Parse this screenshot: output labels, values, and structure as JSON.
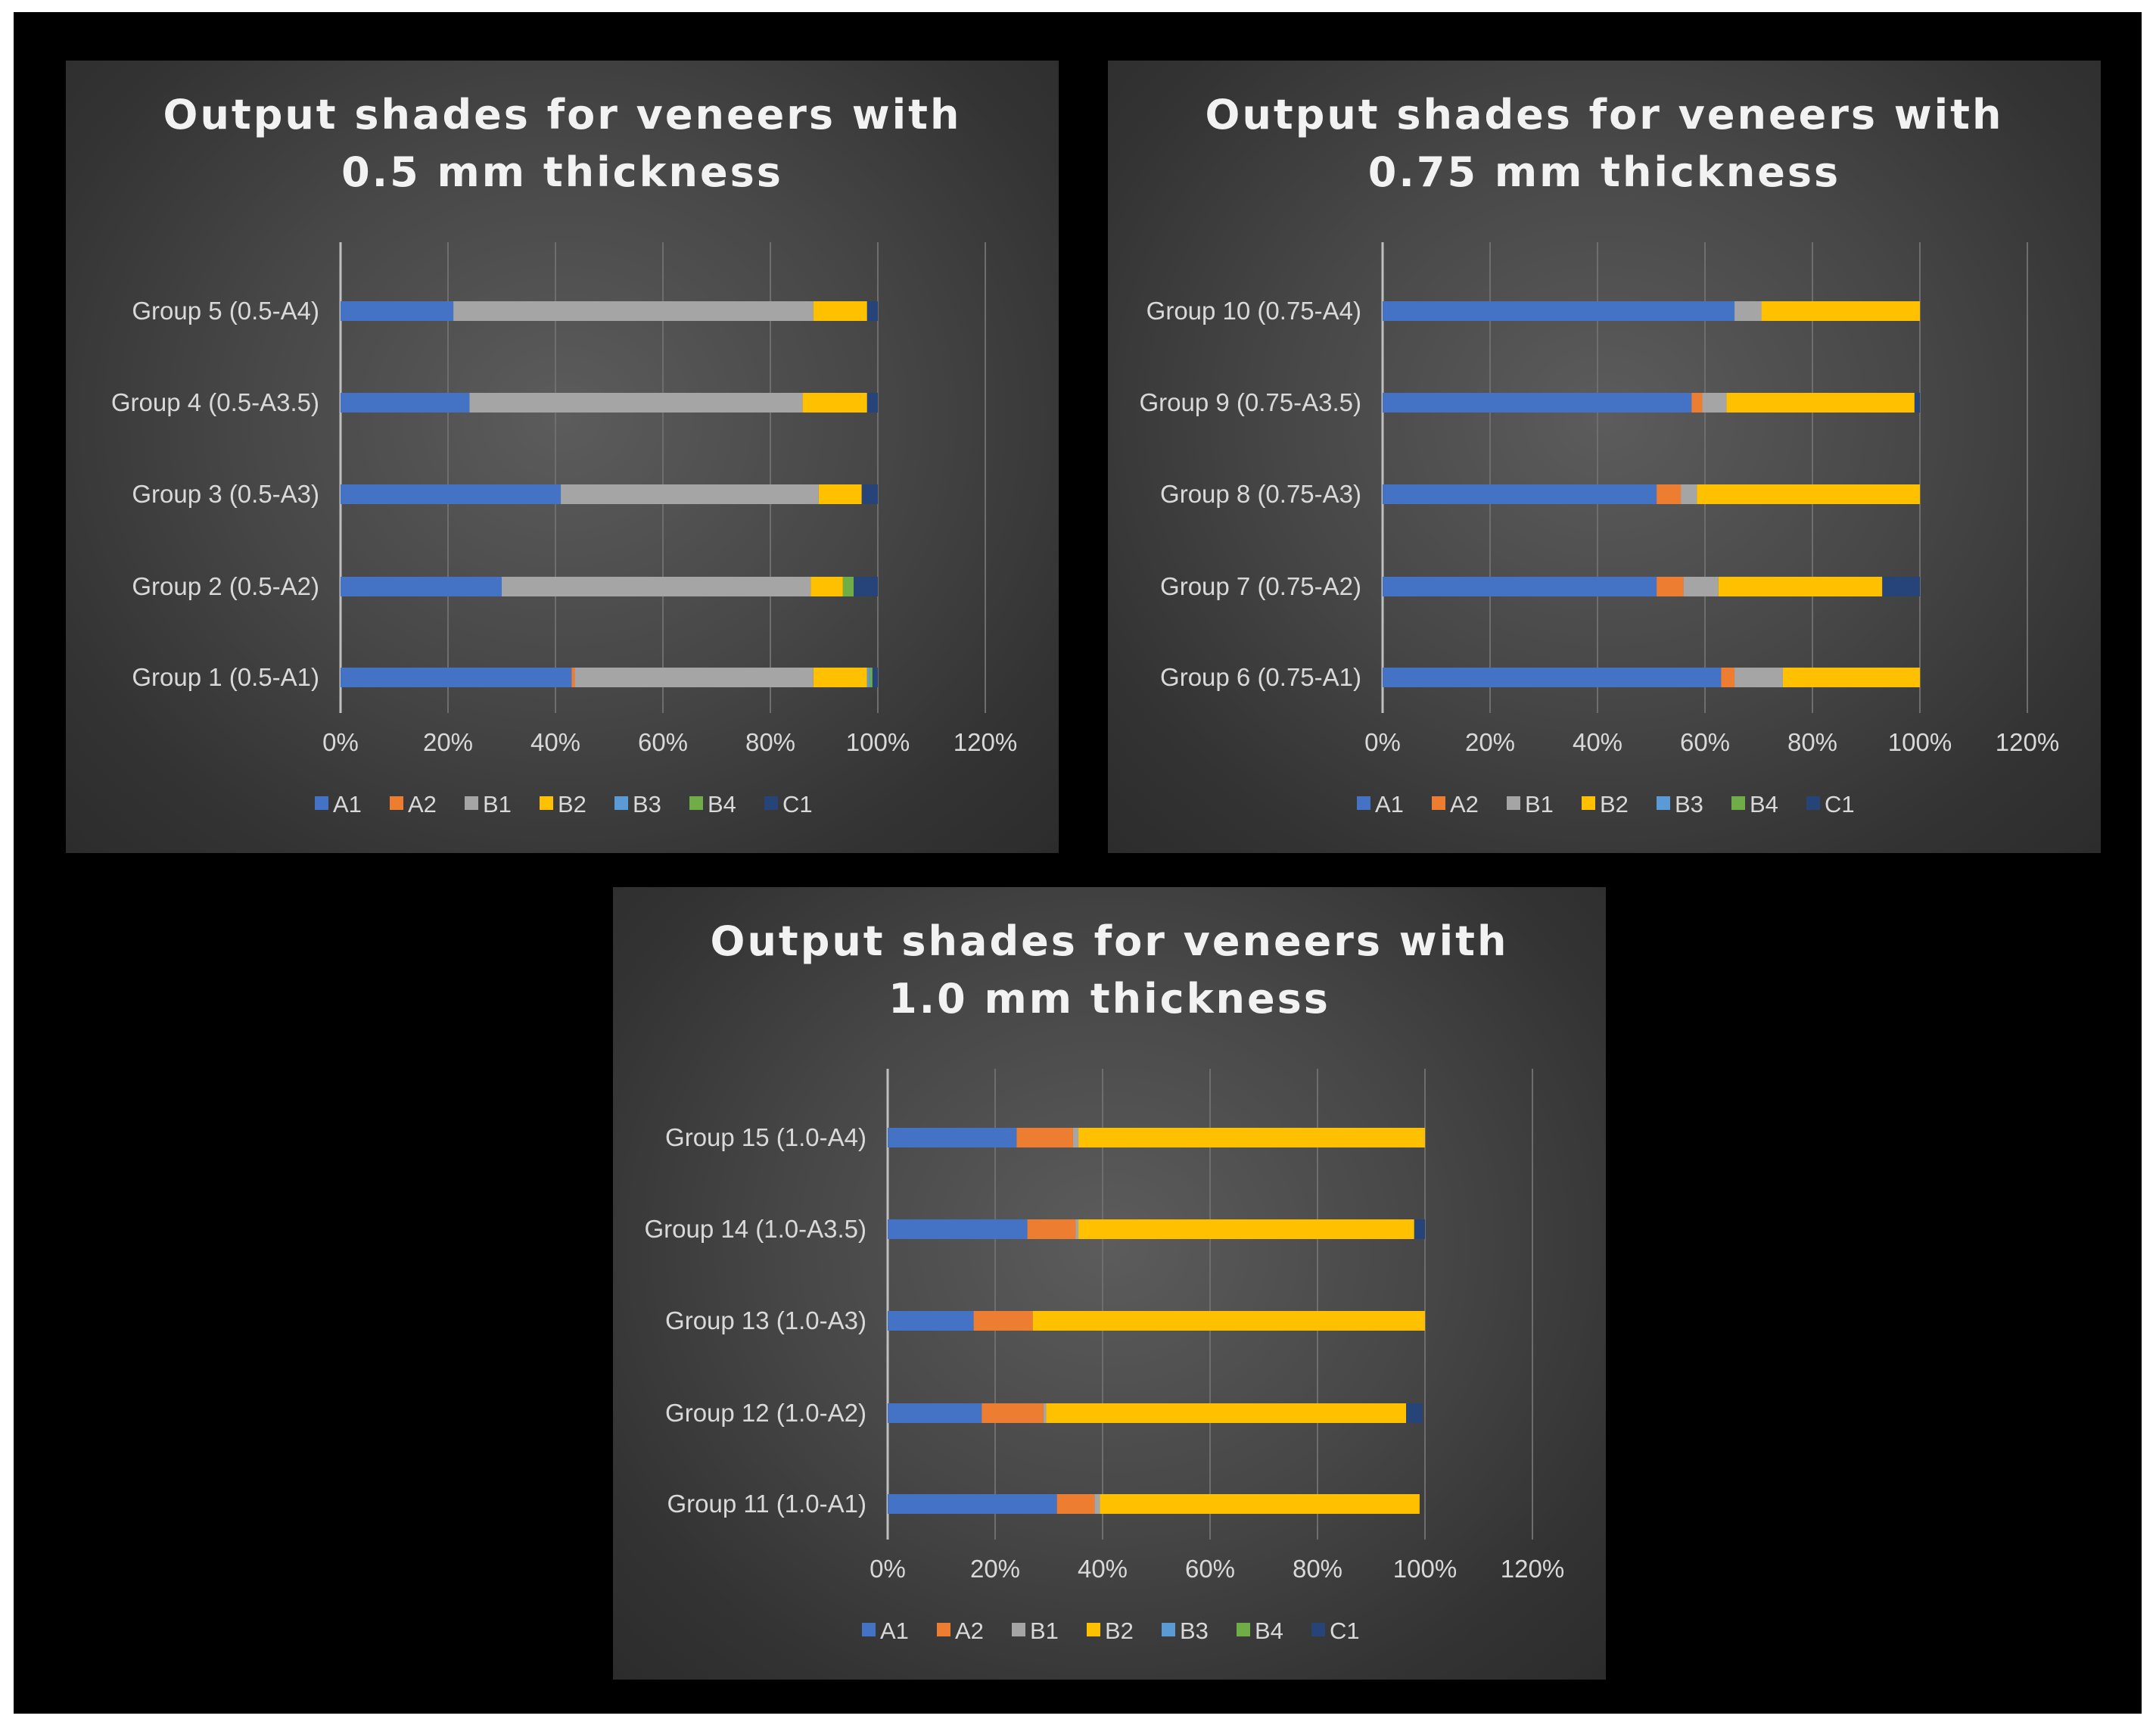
{
  "figure": {
    "legend_labels": [
      "A1",
      "A2",
      "B1",
      "B2",
      "B3",
      "B4",
      "C1"
    ]
  },
  "chart_data": [
    {
      "type": "bar",
      "orientation": "horizontal",
      "stacked": true,
      "title": [
        "Output shades for veneers with",
        "0.5 mm thickness"
      ],
      "categories": [
        "Group 1 (0.5-A1)",
        "Group 2 (0.5-A2)",
        "Group 3 (0.5-A3)",
        "Group 4 (0.5-A3.5)",
        "Group 5 (0.5-A4)"
      ],
      "xlim": [
        0,
        120
      ],
      "xticks": [
        "0%",
        "20%",
        "40%",
        "60%",
        "80%",
        "100%",
        "120%"
      ],
      "grid": true,
      "legend": "bottom",
      "series": [
        {
          "name": "A1",
          "color": "#4472C4",
          "values": [
            43,
            30,
            41,
            24,
            21
          ]
        },
        {
          "name": "A2",
          "color": "#ED7D31",
          "values": [
            0.6,
            0,
            0,
            0,
            0
          ]
        },
        {
          "name": "B1",
          "color": "#A5A5A5",
          "values": [
            44.4,
            57.5,
            48,
            62,
            67
          ]
        },
        {
          "name": "B2",
          "color": "#FFC000",
          "values": [
            10,
            6,
            8,
            12,
            10
          ]
        },
        {
          "name": "B3",
          "color": "#5B9BD5",
          "values": [
            0.5,
            0,
            0,
            0,
            0
          ]
        },
        {
          "name": "B4",
          "color": "#70AD47",
          "values": [
            0.5,
            2,
            0,
            0,
            0
          ]
        },
        {
          "name": "C1",
          "color": "#264478",
          "values": [
            1,
            4.5,
            3,
            2,
            2
          ]
        }
      ]
    },
    {
      "type": "bar",
      "orientation": "horizontal",
      "stacked": true,
      "title": [
        "Output shades for veneers with",
        "0.75 mm thickness"
      ],
      "categories": [
        "Group 6 (0.75-A1)",
        "Group 7 (0.75-A2)",
        "Group 8 (0.75-A3)",
        "Group 9 (0.75-A3.5)",
        "Group 10 (0.75-A4)"
      ],
      "xlim": [
        0,
        120
      ],
      "xticks": [
        "0%",
        "20%",
        "40%",
        "60%",
        "80%",
        "100%",
        "120%"
      ],
      "grid": true,
      "legend": "bottom",
      "series": [
        {
          "name": "A1",
          "color": "#4472C4",
          "values": [
            63,
            51,
            51,
            57.5,
            65.5
          ]
        },
        {
          "name": "A2",
          "color": "#ED7D31",
          "values": [
            2.5,
            5,
            4.5,
            2,
            0
          ]
        },
        {
          "name": "B1",
          "color": "#A5A5A5",
          "values": [
            9,
            6.5,
            3,
            4.5,
            5
          ]
        },
        {
          "name": "B2",
          "color": "#FFC000",
          "values": [
            25.5,
            30.5,
            41.5,
            35,
            29.5
          ]
        },
        {
          "name": "B3",
          "color": "#5B9BD5",
          "values": [
            0,
            0,
            0,
            0,
            0
          ]
        },
        {
          "name": "B4",
          "color": "#70AD47",
          "values": [
            0,
            0,
            0,
            0,
            0
          ]
        },
        {
          "name": "C1",
          "color": "#264478",
          "values": [
            0,
            7,
            0,
            1,
            0
          ]
        }
      ]
    },
    {
      "type": "bar",
      "orientation": "horizontal",
      "stacked": true,
      "title": [
        "Output shades for veneers with",
        "1.0 mm thickness"
      ],
      "categories": [
        "Group 11 (1.0-A1)",
        "Group 12 (1.0-A2)",
        "Group 13 (1.0-A3)",
        "Group 14 (1.0-A3.5)",
        "Group 15 (1.0-A4)"
      ],
      "xlim": [
        0,
        120
      ],
      "xticks": [
        "0%",
        "20%",
        "40%",
        "60%",
        "80%",
        "100%",
        "120%"
      ],
      "grid": true,
      "legend": "bottom",
      "series": [
        {
          "name": "A1",
          "color": "#4472C4",
          "values": [
            31.5,
            17.5,
            16,
            26,
            24
          ]
        },
        {
          "name": "A2",
          "color": "#ED7D31",
          "values": [
            7,
            11.5,
            11,
            9,
            10.5
          ]
        },
        {
          "name": "B1",
          "color": "#A5A5A5",
          "values": [
            1,
            0.5,
            0,
            0.5,
            1
          ]
        },
        {
          "name": "B2",
          "color": "#FFC000",
          "values": [
            59.5,
            67,
            73,
            62.5,
            64.5
          ]
        },
        {
          "name": "B3",
          "color": "#5B9BD5",
          "values": [
            0,
            0,
            0,
            0,
            0
          ]
        },
        {
          "name": "B4",
          "color": "#70AD47",
          "values": [
            0,
            0,
            0,
            0,
            0
          ]
        },
        {
          "name": "C1",
          "color": "#264478",
          "values": [
            0,
            3,
            0,
            2,
            0
          ]
        }
      ]
    }
  ]
}
